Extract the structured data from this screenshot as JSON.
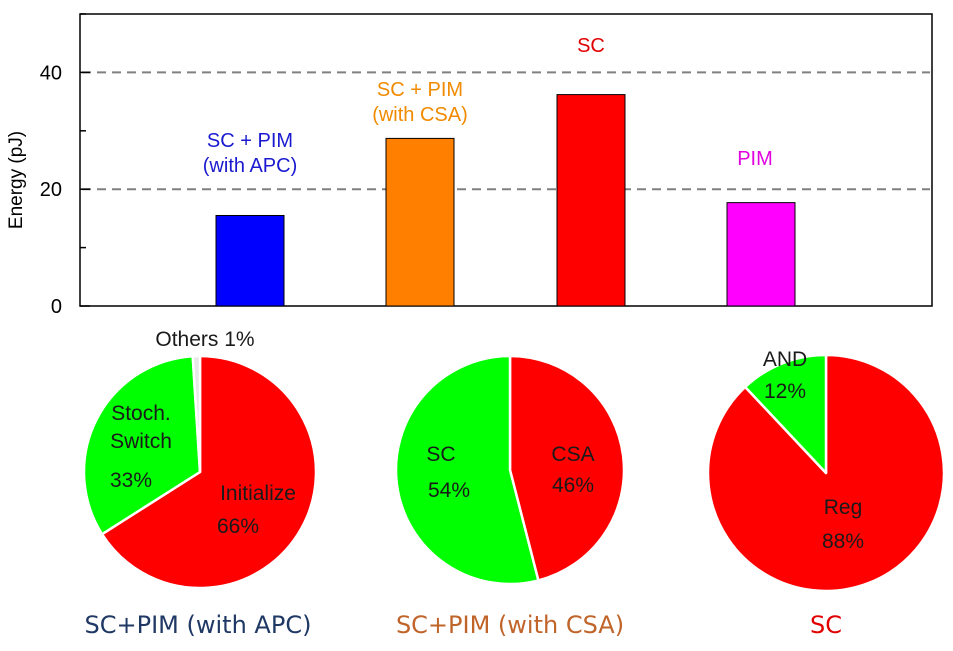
{
  "chart_data": [
    {
      "type": "bar",
      "ylabel": "Energy (pJ)",
      "ylim": [
        0,
        50
      ],
      "yticks": [
        0,
        20,
        40
      ],
      "grid": "dashed horizontal lines at 20 and 40",
      "categories": [
        "SC + PIM\n(with APC)",
        "SC + PIM\n(with CSA)",
        "SC",
        "PIM"
      ],
      "values": [
        15.5,
        28.7,
        36.2,
        17.7
      ],
      "colors": [
        "#0000ff",
        "#ff8000",
        "#ff0000",
        "#ff00ff"
      ],
      "label_colors": [
        "#1a1ad0",
        "#f08a00",
        "#e00000",
        "#e000e0"
      ]
    },
    {
      "type": "pie",
      "caption": "SC+PIM (with APC)",
      "caption_color": "#1f3864",
      "slices": [
        {
          "label": "Initialize",
          "value": 66,
          "value_text": "66%",
          "color": "#ff0000"
        },
        {
          "label": "Stoch.\nSwitch",
          "value": 33,
          "value_text": "33%",
          "color": "#00ff00"
        },
        {
          "label": "Others",
          "value": 1,
          "value_text": "1%",
          "color": "#e8e8e8"
        }
      ],
      "outside_label": "Others 1%"
    },
    {
      "type": "pie",
      "caption": "SC+PIM (with CSA)",
      "caption_color": "#c0642a",
      "slices": [
        {
          "label": "CSA",
          "value": 46,
          "value_text": "46%",
          "color": "#ff0000"
        },
        {
          "label": "SC",
          "value": 54,
          "value_text": "54%",
          "color": "#00ff00"
        }
      ]
    },
    {
      "type": "pie",
      "caption": "SC",
      "caption_color": "#e00000",
      "slices": [
        {
          "label": "Reg",
          "value": 88,
          "value_text": "88%",
          "color": "#ff0000"
        },
        {
          "label": "AND",
          "value": 12,
          "value_text": "12%",
          "color": "#00ff00"
        }
      ]
    }
  ]
}
